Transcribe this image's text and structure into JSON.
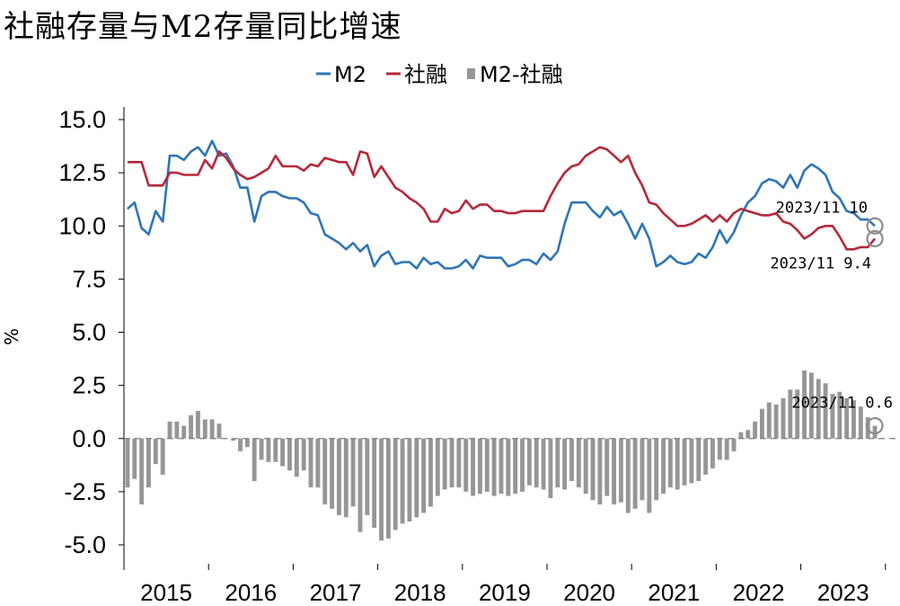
{
  "chart_data": {
    "type": "line",
    "title": "社融存量与M2存量同比增速",
    "ylabel": "%",
    "ylim": [
      -5.0,
      15.0
    ],
    "yticks": [
      "15.0",
      "12.5",
      "10.0",
      "7.5",
      "5.0",
      "2.5",
      "0.0",
      "-2.5",
      "-5.0"
    ],
    "yticks_values": [
      15.0,
      12.5,
      10.0,
      7.5,
      5.0,
      2.5,
      0.0,
      -2.5,
      -5.0
    ],
    "years": [
      "2015",
      "2016",
      "2017",
      "2018",
      "2019",
      "2020",
      "2021",
      "2022",
      "2023"
    ],
    "x_start": "2015-01",
    "x_end": "2023-11",
    "legend": [
      "M2",
      "社融",
      "M2-社融"
    ],
    "legend_position": "top-center",
    "colors": {
      "M2": "#2e75b6",
      "社融": "#b5283a",
      "M2-社融": "#969696"
    },
    "series": [
      {
        "name": "M2",
        "type": "line",
        "values": [
          10.8,
          11.1,
          9.9,
          9.6,
          10.7,
          10.2,
          13.3,
          13.3,
          13.1,
          13.5,
          13.7,
          13.3,
          14.0,
          13.3,
          13.4,
          12.8,
          11.8,
          11.8,
          10.2,
          11.4,
          11.6,
          11.6,
          11.4,
          11.3,
          11.3,
          11.1,
          10.6,
          10.5,
          9.6,
          9.4,
          9.2,
          8.9,
          9.2,
          8.8,
          9.1,
          8.1,
          8.6,
          8.8,
          8.2,
          8.3,
          8.3,
          8.0,
          8.5,
          8.2,
          8.3,
          8.0,
          8.0,
          8.1,
          8.4,
          8.0,
          8.6,
          8.5,
          8.5,
          8.5,
          8.1,
          8.2,
          8.4,
          8.4,
          8.2,
          8.7,
          8.4,
          8.8,
          10.1,
          11.1,
          11.1,
          11.1,
          10.7,
          10.4,
          10.9,
          10.5,
          10.7,
          10.1,
          9.4,
          10.1,
          9.4,
          8.1,
          8.3,
          8.6,
          8.3,
          8.2,
          8.3,
          8.7,
          8.5,
          9.0,
          9.8,
          9.2,
          9.7,
          10.5,
          11.1,
          11.4,
          12.0,
          12.2,
          12.1,
          11.8,
          12.4,
          11.8,
          12.6,
          12.9,
          12.7,
          12.4,
          11.6,
          11.3,
          10.7,
          10.6,
          10.3,
          10.3,
          10.0
        ]
      },
      {
        "name": "社融",
        "type": "line",
        "values": [
          13.0,
          13.0,
          13.0,
          11.9,
          11.9,
          11.9,
          12.5,
          12.5,
          12.4,
          12.4,
          12.4,
          13.1,
          12.7,
          13.5,
          13.2,
          12.7,
          12.4,
          12.2,
          12.3,
          12.5,
          12.7,
          13.3,
          12.8,
          12.8,
          12.8,
          12.6,
          12.9,
          12.8,
          13.2,
          13.1,
          13.0,
          13.0,
          12.4,
          13.5,
          13.4,
          12.3,
          12.8,
          12.3,
          11.8,
          11.6,
          11.3,
          11.1,
          10.8,
          10.2,
          10.2,
          10.8,
          10.6,
          10.7,
          11.2,
          10.8,
          11.0,
          11.0,
          10.7,
          10.7,
          10.6,
          10.6,
          10.7,
          10.7,
          10.7,
          10.7,
          11.4,
          12.0,
          12.5,
          12.8,
          12.9,
          13.3,
          13.5,
          13.7,
          13.6,
          13.3,
          13.0,
          13.3,
          12.5,
          11.9,
          11.1,
          11.0,
          10.6,
          10.3,
          10.0,
          10.0,
          10.1,
          10.3,
          10.5,
          10.2,
          10.5,
          10.2,
          10.6,
          10.8,
          10.7,
          10.6,
          10.5,
          10.5,
          10.6,
          10.2,
          10.1,
          9.8,
          9.4,
          9.6,
          9.9,
          10.0,
          10.0,
          9.5,
          8.9,
          8.9,
          9.0,
          9.0,
          9.4
        ]
      },
      {
        "name": "M2-社融",
        "type": "bar",
        "values": [
          -2.3,
          -1.9,
          -3.1,
          -2.3,
          -1.2,
          -1.7,
          0.8,
          0.8,
          0.6,
          1.1,
          1.3,
          0.9,
          0.9,
          0.7,
          0.0,
          -0.1,
          -0.6,
          -0.4,
          -2.0,
          -1.0,
          -1.1,
          -1.1,
          -1.3,
          -1.5,
          -1.8,
          -1.5,
          -2.3,
          -2.3,
          -3.1,
          -3.3,
          -3.6,
          -3.7,
          -3.2,
          -4.4,
          -3.6,
          -4.2,
          -4.8,
          -4.7,
          -4.3,
          -4.0,
          -3.9,
          -3.7,
          -3.5,
          -3.2,
          -2.7,
          -2.4,
          -2.3,
          -2.3,
          -2.5,
          -2.7,
          -2.6,
          -2.5,
          -2.7,
          -2.6,
          -2.7,
          -2.6,
          -2.5,
          -2.2,
          -2.3,
          -2.4,
          -2.8,
          -2.3,
          -2.4,
          -2.0,
          -2.3,
          -2.6,
          -2.9,
          -3.1,
          -2.7,
          -3.1,
          -3.0,
          -3.5,
          -3.3,
          -2.9,
          -3.5,
          -2.9,
          -2.6,
          -2.3,
          -2.4,
          -2.2,
          -2.1,
          -2.0,
          -1.7,
          -1.4,
          -1.0,
          -1.0,
          -0.6,
          0.3,
          0.4,
          0.8,
          1.4,
          1.7,
          1.6,
          1.9,
          2.3,
          2.3,
          3.2,
          3.1,
          2.8,
          2.6,
          2.1,
          2.2,
          1.9,
          1.8,
          1.5,
          1.0,
          0.6
        ]
      }
    ],
    "annotations": [
      {
        "series": "M2",
        "text": "2023/11 10",
        "x": "2023-11",
        "y": 10.0
      },
      {
        "series": "社融",
        "text": "2023/11 9.4",
        "x": "2023-11",
        "y": 9.4
      },
      {
        "series": "M2-社融",
        "text": "2023/11 0.6",
        "x": "2023-11",
        "y": 0.6
      }
    ],
    "grid": false
  }
}
